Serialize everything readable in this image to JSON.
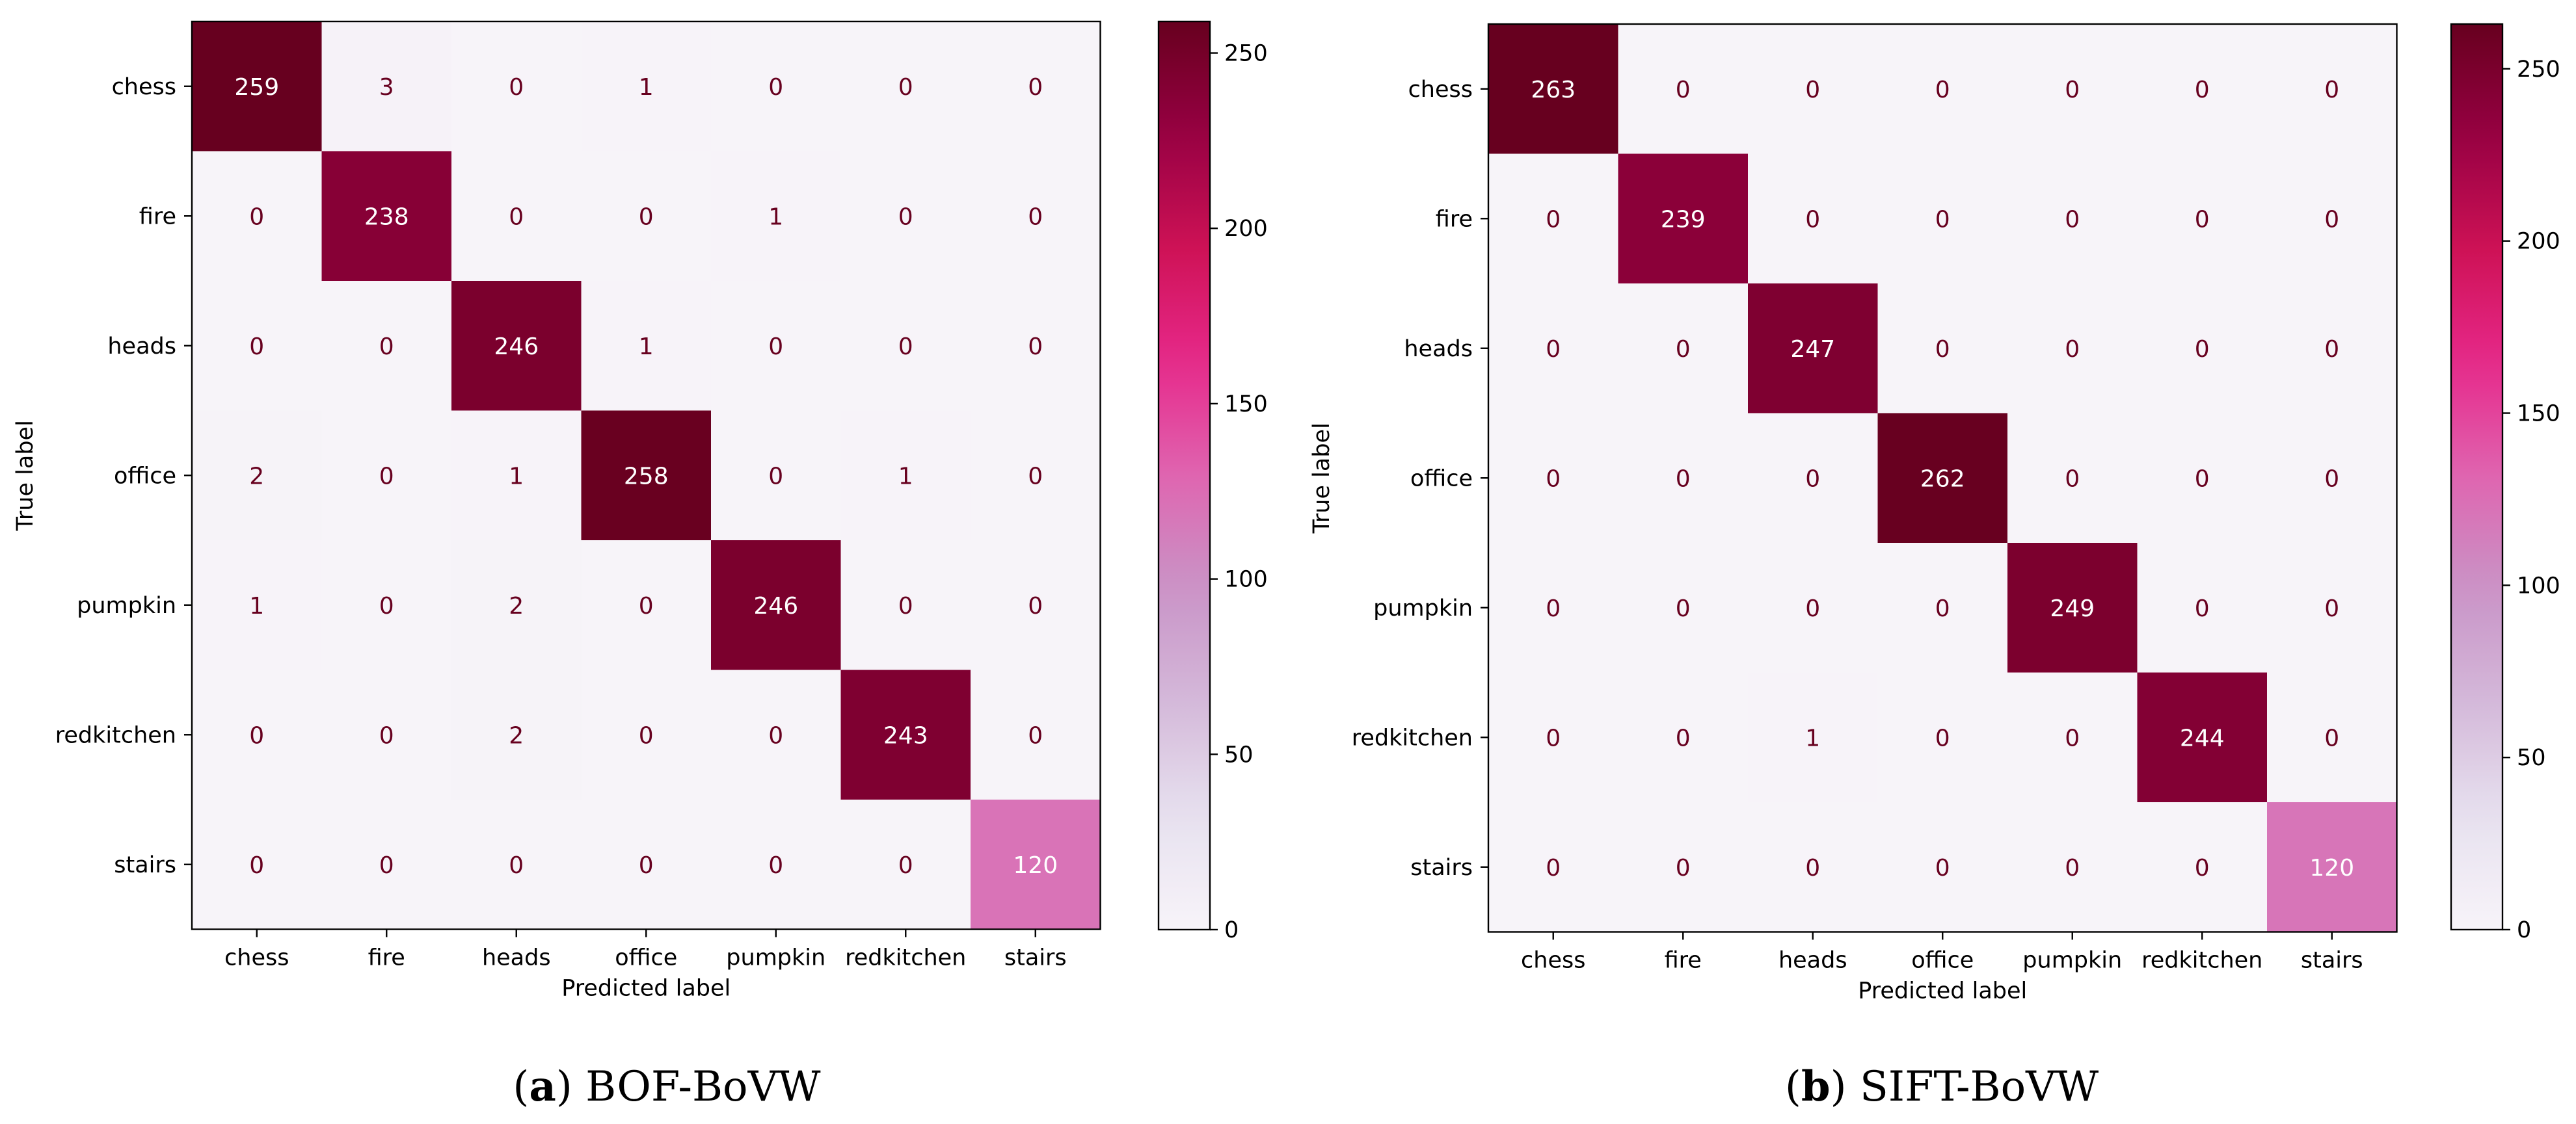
{
  "chart_data": [
    {
      "type": "heatmap",
      "panel": "a",
      "caption_letter": "a",
      "caption_text": "BOF-BoVW",
      "title": "",
      "xlabel": "Predicted label",
      "ylabel": "True label",
      "x_categories": [
        "chess",
        "fire",
        "heads",
        "office",
        "pumpkin",
        "redkitchen",
        "stairs"
      ],
      "y_categories": [
        "chess",
        "fire",
        "heads",
        "office",
        "pumpkin",
        "redkitchen",
        "stairs"
      ],
      "values": [
        [
          259,
          3,
          0,
          1,
          0,
          0,
          0
        ],
        [
          0,
          238,
          0,
          0,
          1,
          0,
          0
        ],
        [
          0,
          0,
          246,
          1,
          0,
          0,
          0
        ],
        [
          2,
          0,
          1,
          258,
          0,
          1,
          0
        ],
        [
          1,
          0,
          2,
          0,
          246,
          0,
          0
        ],
        [
          0,
          0,
          2,
          0,
          0,
          243,
          0
        ],
        [
          0,
          0,
          0,
          0,
          0,
          0,
          120
        ]
      ],
      "colorbar": {
        "min": 0,
        "max": 259,
        "ticks": [
          0,
          50,
          100,
          150,
          200,
          250
        ]
      },
      "colormap": "PuRd"
    },
    {
      "type": "heatmap",
      "panel": "b",
      "caption_letter": "b",
      "caption_text": "SIFT-BoVW",
      "title": "",
      "xlabel": "Predicted label",
      "ylabel": "True label",
      "x_categories": [
        "chess",
        "fire",
        "heads",
        "office",
        "pumpkin",
        "redkitchen",
        "stairs"
      ],
      "y_categories": [
        "chess",
        "fire",
        "heads",
        "office",
        "pumpkin",
        "redkitchen",
        "stairs"
      ],
      "values": [
        [
          263,
          0,
          0,
          0,
          0,
          0,
          0
        ],
        [
          0,
          239,
          0,
          0,
          0,
          0,
          0
        ],
        [
          0,
          0,
          247,
          0,
          0,
          0,
          0
        ],
        [
          0,
          0,
          0,
          262,
          0,
          0,
          0
        ],
        [
          0,
          0,
          0,
          0,
          249,
          0,
          0
        ],
        [
          0,
          0,
          1,
          0,
          0,
          244,
          0
        ],
        [
          0,
          0,
          0,
          0,
          0,
          0,
          120
        ]
      ],
      "colorbar": {
        "min": 0,
        "max": 263,
        "ticks": [
          0,
          50,
          100,
          150,
          200,
          250
        ]
      },
      "colormap": "PuRd"
    }
  ],
  "colors": {
    "text_dark": "#67001f",
    "text_light": "#ffffff",
    "axis": "#000000"
  }
}
